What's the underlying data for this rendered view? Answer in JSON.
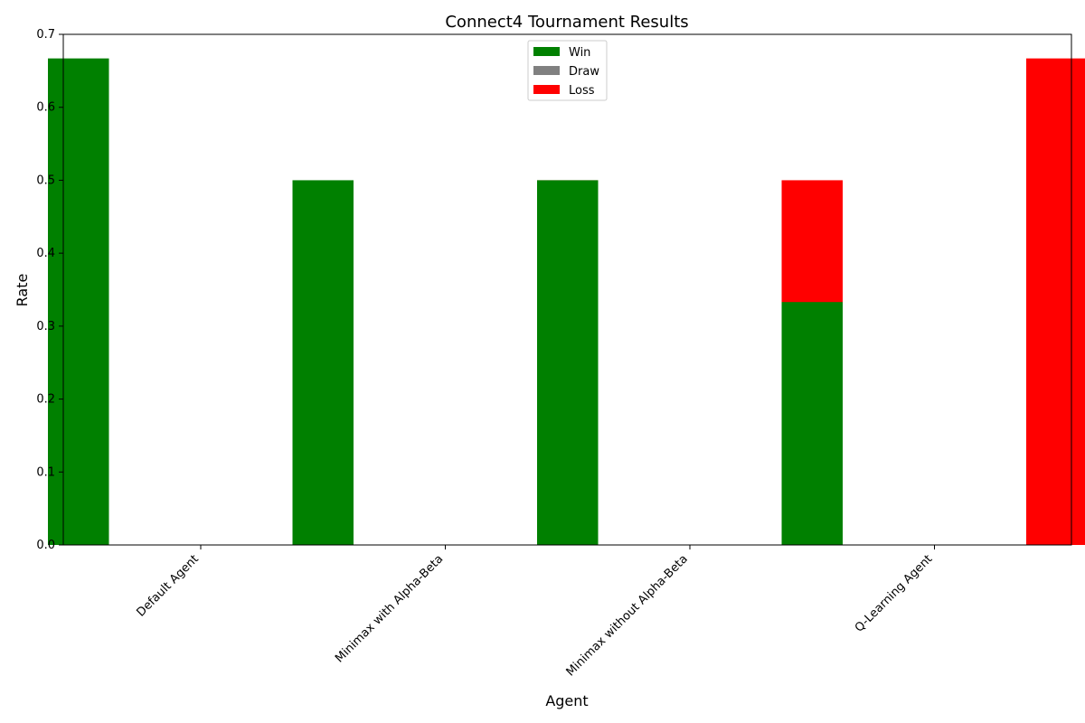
{
  "chart_data": {
    "type": "bar",
    "title": "Connect4 Tournament Results",
    "xlabel": "Agent",
    "ylabel": "Rate",
    "ylim": [
      0,
      0.7
    ],
    "yticks": [
      "0.0",
      "0.1",
      "0.2",
      "0.3",
      "0.4",
      "0.5",
      "0.6",
      "0.7"
    ],
    "categories": [
      "Default Agent",
      "Minimax with Alpha-Beta",
      "Minimax without Alpha-Beta",
      "Q-Learning Agent"
    ],
    "series": [
      {
        "name": "Win",
        "color": "#008000",
        "values": [
          0.667,
          0.5,
          0.5,
          0.333
        ]
      },
      {
        "name": "Draw",
        "color": "#808080",
        "values": [
          0,
          0,
          0,
          0
        ]
      },
      {
        "name": "Loss",
        "color": "#ff0000",
        "values": [
          0.333,
          0.5,
          0.5,
          0.667
        ]
      }
    ],
    "legend_position": "top-center",
    "grid": false
  }
}
